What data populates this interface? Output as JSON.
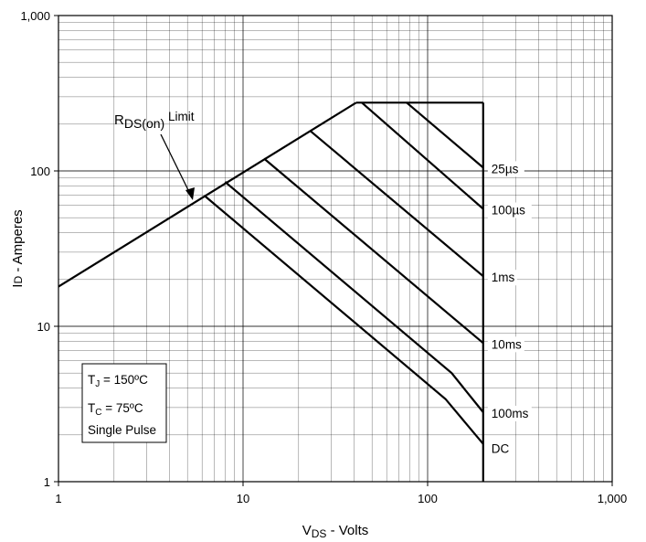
{
  "chart_data": {
    "type": "line",
    "xlabel": {
      "main": "V",
      "sub": "DS",
      "rest": " - Volts"
    },
    "ylabel": {
      "main": "I",
      "sub": "D",
      "rest": " - Amperes"
    },
    "x_scale": "log",
    "y_scale": "log",
    "xlim": [
      1,
      1000
    ],
    "ylim": [
      1,
      1000
    ],
    "x_ticks": [
      {
        "value": 1,
        "label": "1"
      },
      {
        "value": 10,
        "label": "10"
      },
      {
        "value": 100,
        "label": "100"
      },
      {
        "value": 1000,
        "label": "1,000"
      }
    ],
    "y_ticks": [
      {
        "value": 1,
        "label": "1"
      },
      {
        "value": 10,
        "label": "10"
      },
      {
        "value": 100,
        "label": "100"
      },
      {
        "value": 1000,
        "label": "1,000"
      }
    ],
    "grid": true,
    "rds_limit": {
      "label_main": "R",
      "label_sub": "DS(on)",
      "label_rest": " Limit",
      "points": [
        [
          1,
          18
        ],
        [
          41,
          275
        ]
      ]
    },
    "current_limit": {
      "points": [
        [
          41,
          275
        ],
        [
          200,
          275
        ]
      ]
    },
    "voltage_limit": {
      "points": [
        [
          200,
          275
        ],
        [
          200,
          1
        ]
      ]
    },
    "series": [
      {
        "name": "25µs",
        "points": [
          [
            77,
            275
          ],
          [
            200,
            105
          ]
        ]
      },
      {
        "name": "100µs",
        "points": [
          [
            44,
            275
          ],
          [
            200,
            57
          ]
        ]
      },
      {
        "name": "1ms",
        "points": [
          [
            23,
            182
          ],
          [
            200,
            21
          ]
        ]
      },
      {
        "name": "10ms",
        "points": [
          [
            13,
            120
          ],
          [
            200,
            7.8
          ]
        ]
      },
      {
        "name": "100ms",
        "points": [
          [
            8,
            85
          ],
          [
            135,
            5
          ],
          [
            200,
            2.8
          ]
        ]
      },
      {
        "name": "DC",
        "points": [
          [
            6.2,
            69
          ],
          [
            125,
            3.4
          ],
          [
            200,
            1.75
          ]
        ]
      }
    ],
    "conditions": [
      {
        "main": "T",
        "sub": "J",
        "rest": " = 150ºC"
      },
      {
        "main": "T",
        "sub": "C",
        "rest": " = 75ºC"
      },
      {
        "main": "Single Pulse",
        "sub": "",
        "rest": ""
      }
    ]
  }
}
